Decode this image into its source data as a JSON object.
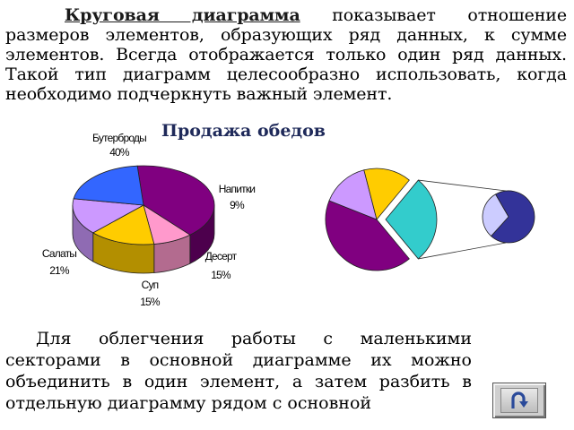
{
  "text": {
    "para1_term": "Круговая диаграмма",
    "para1_rest": " показывает отношение размеров элементов, образующих ряд данных, к сумме элементов. Всегда отображается только один ряд данных. Такой тип диаграмм целесообразно использовать, когда необходимо подчеркнуть важный элемент.",
    "chart_title": "Продажа обедов",
    "para2": "Для облегчения работы с маленькими секторами в основной диаграмме их можно объединить в один элемент, а затем разбить в отдельную диаграмму рядом с основной"
  },
  "chart_data": [
    {
      "type": "pie",
      "variant": "3d",
      "title": "Продажа обедов",
      "categories": [
        "Бутерброды",
        "Напитки",
        "Десерт",
        "Суп",
        "Салаты"
      ],
      "values": [
        40,
        9,
        15,
        15,
        21
      ],
      "value_labels": [
        "40%",
        "9%",
        "15%",
        "15%",
        "21%"
      ],
      "colors": [
        "#800080",
        "#ff99cc",
        "#ffcc00",
        "#cc99ff",
        "#3366ff"
      ],
      "side_colors": [
        "#4d004d",
        "#b36b8f",
        "#b38f00",
        "#8f6bb3",
        "#1a3399"
      ]
    },
    {
      "type": "pie",
      "variant": "pie-of-pie",
      "main_values": [
        42,
        15,
        15,
        28
      ],
      "main_colors": [
        "#800080",
        "#cc99ff",
        "#ffcc00",
        "#33cccc"
      ],
      "secondary_values": [
        70,
        30
      ],
      "secondary_colors": [
        "#333399",
        "#ccccff"
      ]
    }
  ],
  "icons": {
    "back_button": "u-turn-arrow-icon"
  }
}
